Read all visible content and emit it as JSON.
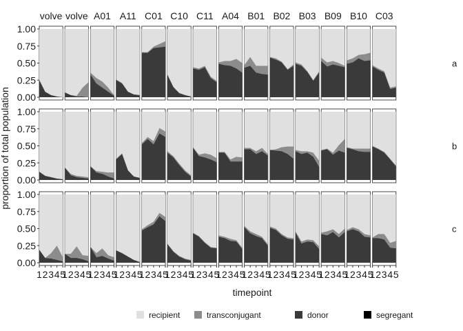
{
  "chart_data": {
    "type": "area",
    "stacked": true,
    "xlabel": "timepoint",
    "ylabel": "proportion of total population",
    "ylim": [
      0,
      1
    ],
    "y_ticks": [
      "0.00",
      "0.25",
      "0.50",
      "0.75",
      "1.00"
    ],
    "x": [
      1,
      2,
      3,
      4,
      5
    ],
    "x_tick_labels": [
      "1",
      "2",
      "3",
      "4",
      "5"
    ],
    "columns": [
      "evolved",
      "evolved",
      "A01",
      "A11",
      "C01",
      "C10",
      "C11",
      "A04",
      "B01",
      "B02",
      "B03",
      "B09",
      "B10",
      "C03"
    ],
    "rows": [
      "a",
      "b",
      "c"
    ],
    "legend": {
      "position": "bottom",
      "entries": [
        {
          "name": "recipient",
          "color": "#e0e0e0"
        },
        {
          "name": "transconjugant",
          "color": "#8c8c8c"
        },
        {
          "name": "donor",
          "color": "#3a3a3a"
        },
        {
          "name": "segregant",
          "color": "#000000"
        }
      ]
    },
    "panels": [
      [
        {
          "donor": [
            0.25,
            0.08,
            0.03,
            0.01,
            0.0
          ],
          "trans": [
            0.0,
            0.0,
            0.0,
            0.0,
            0.0
          ]
        },
        {
          "donor": [
            0.07,
            0.03,
            0.01,
            0.01,
            0.0
          ],
          "trans": [
            0.0,
            0.0,
            0.01,
            0.13,
            0.22
          ]
        },
        {
          "donor": [
            0.33,
            0.2,
            0.14,
            0.08,
            0.02
          ],
          "trans": [
            0.03,
            0.08,
            0.09,
            0.06,
            0.01
          ]
        },
        {
          "donor": [
            0.25,
            0.2,
            0.08,
            0.04,
            0.03
          ],
          "trans": [
            0.01,
            0.01,
            0.0,
            0.0,
            0.0
          ]
        },
        {
          "donor": [
            0.65,
            0.65,
            0.72,
            0.73,
            0.74
          ],
          "trans": [
            0.01,
            0.01,
            0.02,
            0.05,
            0.08
          ]
        },
        {
          "donor": [
            0.33,
            0.15,
            0.06,
            0.03,
            0.01
          ],
          "trans": [
            0.0,
            0.0,
            0.0,
            0.0,
            0.0
          ]
        },
        {
          "donor": [
            0.42,
            0.4,
            0.44,
            0.28,
            0.22
          ],
          "trans": [
            0.02,
            0.02,
            0.02,
            0.02,
            0.02
          ]
        },
        {
          "donor": [
            0.49,
            0.47,
            0.46,
            0.42,
            0.36
          ],
          "trans": [
            0.02,
            0.06,
            0.07,
            0.14,
            0.14
          ]
        },
        {
          "donor": [
            0.43,
            0.46,
            0.36,
            0.34,
            0.33
          ],
          "trans": [
            0.04,
            0.13,
            0.1,
            0.12,
            0.13
          ]
        },
        {
          "donor": [
            0.58,
            0.55,
            0.51,
            0.4,
            0.46
          ],
          "trans": [
            0.01,
            0.02,
            0.01,
            0.01,
            0.02
          ]
        },
        {
          "donor": [
            0.49,
            0.46,
            0.37,
            0.24,
            0.36
          ],
          "trans": [
            0.02,
            0.02,
            0.01,
            0.01,
            0.02
          ]
        },
        {
          "donor": [
            0.53,
            0.45,
            0.48,
            0.46,
            0.44
          ],
          "trans": [
            0.05,
            0.06,
            0.05,
            0.04,
            0.02
          ]
        },
        {
          "donor": [
            0.49,
            0.51,
            0.57,
            0.53,
            0.54
          ],
          "trans": [
            0.05,
            0.06,
            0.05,
            0.1,
            0.11
          ]
        },
        {
          "donor": [
            0.45,
            0.4,
            0.36,
            0.12,
            0.14
          ],
          "trans": [
            0.02,
            0.02,
            0.02,
            0.02,
            0.02
          ]
        }
      ],
      [
        {
          "donor": [
            0.12,
            0.06,
            0.04,
            0.02,
            0.01
          ],
          "trans": [
            0.0,
            0.0,
            0.0,
            0.0,
            0.0
          ]
        },
        {
          "donor": [
            0.18,
            0.07,
            0.04,
            0.03,
            0.02
          ],
          "trans": [
            0.0,
            0.02,
            0.02,
            0.02,
            0.02
          ]
        },
        {
          "donor": [
            0.2,
            0.11,
            0.09,
            0.05,
            0.02
          ],
          "trans": [
            0.0,
            0.02,
            0.03,
            0.06,
            0.09
          ]
        },
        {
          "donor": [
            0.3,
            0.38,
            0.14,
            0.05,
            0.03
          ],
          "trans": [
            0.01,
            0.01,
            0.0,
            0.0,
            0.0
          ]
        },
        {
          "donor": [
            0.52,
            0.6,
            0.52,
            0.68,
            0.63
          ],
          "trans": [
            0.02,
            0.03,
            0.05,
            0.08,
            0.08
          ]
        },
        {
          "donor": [
            0.4,
            0.33,
            0.22,
            0.12,
            0.05
          ],
          "trans": [
            0.02,
            0.02,
            0.02,
            0.02,
            0.02
          ]
        },
        {
          "donor": [
            0.47,
            0.35,
            0.33,
            0.3,
            0.26
          ],
          "trans": [
            0.01,
            0.02,
            0.06,
            0.07,
            0.06
          ]
        },
        {
          "donor": [
            0.4,
            0.4,
            0.27,
            0.27,
            0.27
          ],
          "trans": [
            0.01,
            0.01,
            0.03,
            0.07,
            0.06
          ]
        },
        {
          "donor": [
            0.45,
            0.45,
            0.38,
            0.42,
            0.36
          ],
          "trans": [
            0.02,
            0.02,
            0.04,
            0.05,
            0.02
          ]
        },
        {
          "donor": [
            0.44,
            0.43,
            0.42,
            0.38,
            0.31
          ],
          "trans": [
            0.0,
            0.02,
            0.06,
            0.11,
            0.18
          ]
        },
        {
          "donor": [
            0.42,
            0.38,
            0.4,
            0.34,
            0.19
          ],
          "trans": [
            0.02,
            0.04,
            0.02,
            0.06,
            0.09
          ]
        },
        {
          "donor": [
            0.43,
            0.45,
            0.37,
            0.43,
            0.4
          ],
          "trans": [
            0.01,
            0.01,
            0.03,
            0.08,
            0.2
          ]
        },
        {
          "donor": [
            0.47,
            0.45,
            0.42,
            0.41,
            0.41
          ],
          "trans": [
            0.01,
            0.01,
            0.04,
            0.05,
            0.05
          ]
        },
        {
          "donor": [
            0.49,
            0.45,
            0.4,
            0.3,
            0.2
          ],
          "trans": [
            0.01,
            0.01,
            0.01,
            0.01,
            0.01
          ]
        }
      ],
      [
        {
          "donor": [
            0.19,
            0.07,
            0.06,
            0.04,
            0.02
          ],
          "trans": [
            0.0,
            0.0,
            0.08,
            0.21,
            0.06
          ]
        },
        {
          "donor": [
            0.13,
            0.07,
            0.07,
            0.05,
            0.02
          ],
          "trans": [
            0.0,
            0.06,
            0.17,
            0.06,
            0.08
          ]
        },
        {
          "donor": [
            0.23,
            0.08,
            0.1,
            0.06,
            0.03
          ],
          "trans": [
            0.0,
            0.06,
            0.11,
            0.05,
            0.05
          ]
        },
        {
          "donor": [
            0.18,
            0.14,
            0.09,
            0.04,
            0.01
          ],
          "trans": [
            0.0,
            0.0,
            0.0,
            0.0,
            0.0
          ]
        },
        {
          "donor": [
            0.47,
            0.52,
            0.56,
            0.68,
            0.61
          ],
          "trans": [
            0.02,
            0.03,
            0.04,
            0.05,
            0.06
          ]
        },
        {
          "donor": [
            0.27,
            0.16,
            0.09,
            0.05,
            0.03
          ],
          "trans": [
            0.01,
            0.01,
            0.01,
            0.01,
            0.01
          ]
        },
        {
          "donor": [
            0.43,
            0.38,
            0.29,
            0.22,
            0.21
          ],
          "trans": [
            0.01,
            0.01,
            0.01,
            0.01,
            0.01
          ]
        },
        {
          "donor": [
            0.38,
            0.36,
            0.32,
            0.31,
            0.2
          ],
          "trans": [
            0.02,
            0.02,
            0.03,
            0.02,
            0.02
          ]
        },
        {
          "donor": [
            0.52,
            0.43,
            0.39,
            0.36,
            0.25
          ],
          "trans": [
            0.02,
            0.03,
            0.03,
            0.02,
            0.02
          ]
        },
        {
          "donor": [
            0.51,
            0.48,
            0.4,
            0.35,
            0.34
          ],
          "trans": [
            0.02,
            0.02,
            0.02,
            0.02,
            0.02
          ]
        },
        {
          "donor": [
            0.44,
            0.28,
            0.31,
            0.3,
            0.2
          ],
          "trans": [
            0.02,
            0.03,
            0.03,
            0.03,
            0.04
          ]
        },
        {
          "donor": [
            0.42,
            0.4,
            0.45,
            0.37,
            0.45
          ],
          "trans": [
            0.02,
            0.06,
            0.04,
            0.05,
            0.05
          ]
        },
        {
          "donor": [
            0.46,
            0.49,
            0.46,
            0.38,
            0.37
          ],
          "trans": [
            0.02,
            0.03,
            0.03,
            0.04,
            0.03
          ]
        },
        {
          "donor": [
            0.36,
            0.36,
            0.34,
            0.22,
            0.21
          ],
          "trans": [
            0.01,
            0.06,
            0.08,
            0.07,
            0.11
          ]
        }
      ]
    ]
  }
}
